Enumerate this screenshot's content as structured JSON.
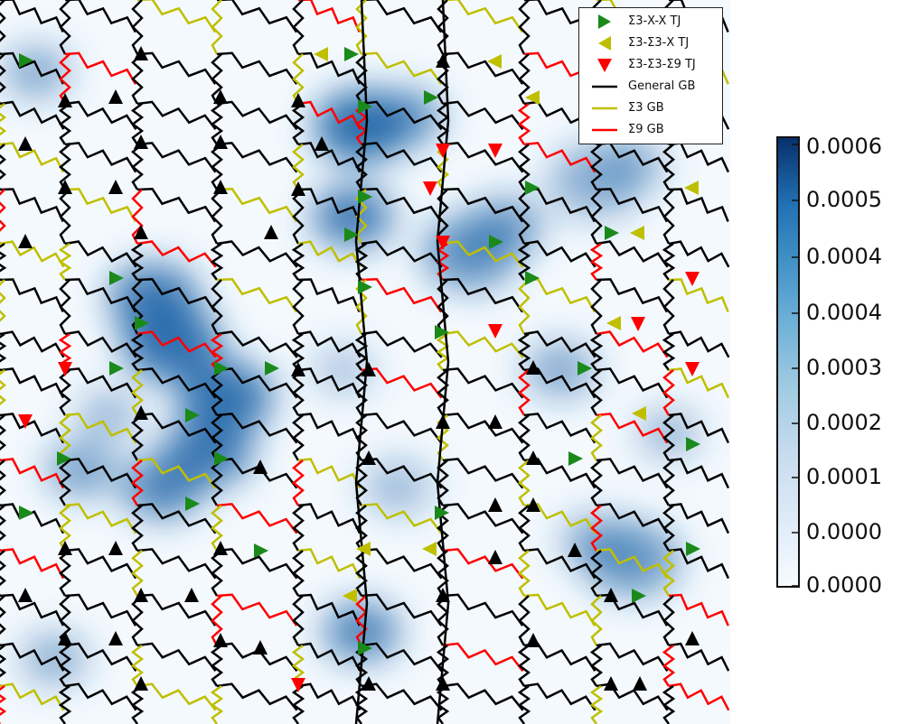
{
  "chart_data": {
    "type": "heatmap",
    "title": "",
    "xlabel": "",
    "ylabel": "",
    "colormap": "Blues",
    "grid": false,
    "legend_position": "top-right",
    "legend": [
      {
        "marker": "triangle-right",
        "color": "#1a8a1a",
        "label": "Σ3-X-X TJ"
      },
      {
        "marker": "triangle-left",
        "color": "#bfbf00",
        "label": "Σ3-Σ3-X TJ"
      },
      {
        "marker": "triangle-down",
        "color": "#ff0000",
        "label": "Σ3-Σ3-Σ9 TJ"
      },
      {
        "marker": "line",
        "color": "#000000",
        "label": "General GB"
      },
      {
        "marker": "line",
        "color": "#bfbf00",
        "label": "Σ3 GB"
      },
      {
        "marker": "line",
        "color": "#ff0000",
        "label": "Σ9 GB"
      }
    ],
    "colorbar": {
      "range": [
        0.0,
        0.00062
      ],
      "tick_labels": [
        "0.0006",
        "0.0005",
        "0.0004",
        "0.0004",
        "0.0003",
        "0.0002",
        "0.0001",
        "0.0000",
        "0.0000"
      ]
    },
    "triple_junctions": [
      {
        "type": "triangle-right",
        "color": "#1a8a1a",
        "count": 30
      },
      {
        "type": "triangle-left",
        "color": "#bfbf00",
        "count": 10
      },
      {
        "type": "triangle-down",
        "color": "#ff0000",
        "count": 11
      },
      {
        "type": "triangle-up",
        "color": "#000000",
        "count": 50
      }
    ]
  }
}
